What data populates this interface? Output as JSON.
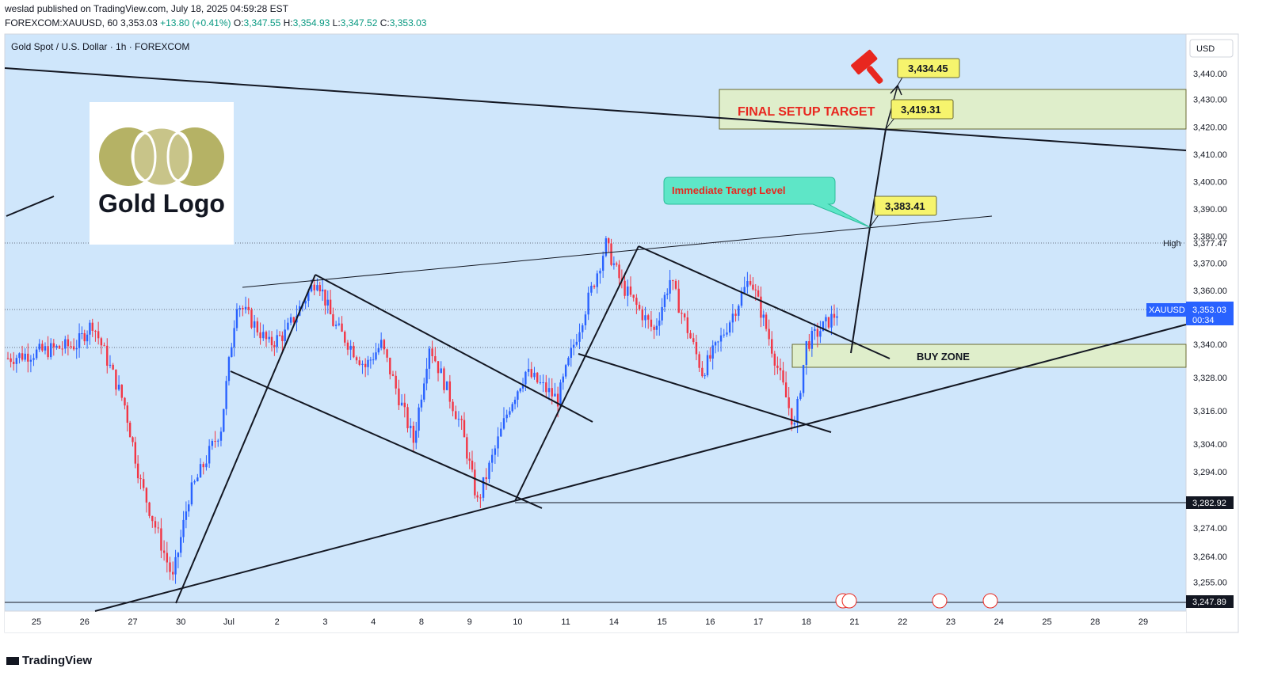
{
  "header": {
    "line1": "weslad published on TradingView.com, July 18, 2025 04:59:28 EST",
    "symbol": "FOREXCOM:XAUUSD, 60",
    "last": "3,353.03",
    "change": "+13.80 (+0.41%)",
    "o_label": "O:",
    "o": "3,347.55",
    "h_label": "H:",
    "h": "3,354.93",
    "l_label": "L:",
    "l": "3,347.52",
    "c_label": "C:",
    "c": "3,353.03"
  },
  "footer": {
    "brand": "TradingView"
  },
  "chart_data": {
    "type": "candlestick",
    "title": "Gold Spot / U.S. Dollar · 1h · FOREXCOM",
    "currency": "USD",
    "interval": "1h",
    "ylim": [
      3246,
      3450
    ],
    "grid": false,
    "y_ticks": [
      "3,440.00",
      "3,430.00",
      "3,420.00",
      "3,410.00",
      "3,400.00",
      "3,390.00",
      "3,380.00",
      "3,370.00",
      "3,360.00",
      "3,340.00",
      "3,328.00",
      "3,316.00",
      "3,304.00",
      "3,294.00",
      "3,274.00",
      "3,264.00",
      "3,255.00"
    ],
    "x_ticks": [
      "25",
      "26",
      "27",
      "30",
      "Jul",
      "2",
      "3",
      "4",
      "8",
      "9",
      "10",
      "11",
      "14",
      "15",
      "16",
      "17",
      "18",
      "21",
      "22",
      "23",
      "24",
      "25",
      "28",
      "29"
    ],
    "price_path": [
      [
        "25",
        3335
      ],
      [
        "26",
        3340
      ],
      [
        "26",
        3348
      ],
      [
        "27",
        3318
      ],
      [
        "27",
        3290
      ],
      [
        "30",
        3256
      ],
      [
        "30",
        3285
      ],
      [
        "Jul",
        3310
      ],
      [
        "Jul",
        3356
      ],
      [
        "2",
        3340
      ],
      [
        "2",
        3344
      ],
      [
        "3",
        3365
      ],
      [
        "3",
        3348
      ],
      [
        "4",
        3332
      ],
      [
        "4",
        3340
      ],
      [
        "8",
        3305
      ],
      [
        "8",
        3340
      ],
      [
        "9",
        3310
      ],
      [
        "9",
        3283
      ],
      [
        "10",
        3318
      ],
      [
        "10",
        3330
      ],
      [
        "11",
        3320
      ],
      [
        "11",
        3340
      ],
      [
        "14",
        3377
      ],
      [
        "14",
        3362
      ],
      [
        "15",
        3345
      ],
      [
        "15",
        3364
      ],
      [
        "16",
        3330
      ],
      [
        "16",
        3340
      ],
      [
        "17",
        3365
      ],
      [
        "17",
        3346
      ],
      [
        "18",
        3310
      ],
      [
        "18",
        3340
      ],
      [
        "18",
        3353
      ]
    ],
    "price_labels": {
      "symbol": "XAUUSD",
      "current": "3,353.03",
      "countdown": "00:34",
      "high_label": "High",
      "high": "3,377.47",
      "level1": "3,282.92",
      "level2": "3,247.89"
    },
    "annotations": {
      "logo_text": "Gold Logo",
      "final_target_text": "FINAL SETUP TARGET",
      "immediate_text": "Immediate Taregt Level",
      "buy_zone_text": "BUY ZONE",
      "target_1": "3,383.41",
      "target_2": "3,419.31",
      "target_3": "3,434.45"
    },
    "colors": {
      "background": "#cfe6fb",
      "up": "#2962ff",
      "down": "#f23645",
      "final_box": "#dfeecb",
      "buy_box": "#dfeecb",
      "immediate_bubble": "#5ee6c7",
      "target_label": "#f6f46d",
      "final_text": "#e8271f",
      "hammer": "#e8271f"
    }
  }
}
